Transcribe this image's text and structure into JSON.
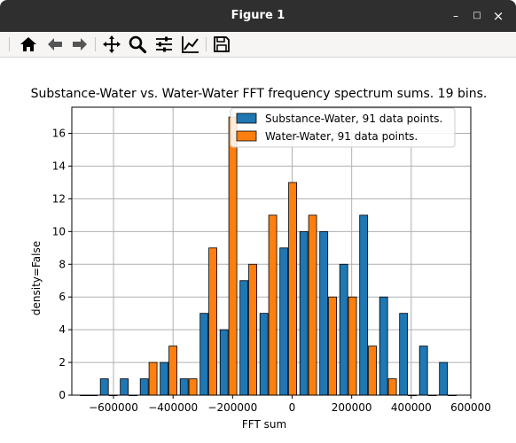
{
  "window": {
    "title": "Figure 1",
    "controls": {
      "minimize": "–",
      "maximize": "□",
      "close": "×"
    }
  },
  "toolbar": {
    "buttons": [
      {
        "name": "home",
        "icon": "home-icon"
      },
      {
        "name": "back",
        "icon": "arrow-left-icon"
      },
      {
        "name": "forward",
        "icon": "arrow-right-icon"
      },
      {
        "name": "pan",
        "icon": "move-icon"
      },
      {
        "name": "zoom",
        "icon": "magnifier-icon"
      },
      {
        "name": "configure-subplots",
        "icon": "sliders-icon"
      },
      {
        "name": "edit-axis",
        "icon": "line-chart-icon"
      },
      {
        "name": "save",
        "icon": "floppy-disk-icon"
      }
    ]
  },
  "colors": {
    "series1": "#1f77b4",
    "series2": "#ff7f0e",
    "grid": "#b0b0b0",
    "titlebar": "#2f2f2f"
  },
  "chart_data": {
    "type": "bar",
    "title": "Substance-Water vs. Water-Water FFT frequency spectrum sums. 19 bins.",
    "xlabel": "FFT sum",
    "ylabel": "density=False",
    "xlim": [
      -740000,
      600000
    ],
    "ylim": [
      0,
      17.6
    ],
    "grid": true,
    "legend_position": "top-right",
    "x_ticks": [
      -600000,
      -400000,
      -200000,
      0,
      200000,
      400000,
      600000
    ],
    "x_tick_labels": [
      "−600000",
      "−400000",
      "−200000",
      "0",
      "200000",
      "400000",
      "600000"
    ],
    "y_ticks": [
      0,
      2,
      4,
      6,
      8,
      10,
      12,
      14,
      16
    ],
    "y_tick_labels": [
      "0",
      "2",
      "4",
      "6",
      "8",
      "10",
      "12",
      "14",
      "16"
    ],
    "bin_width": 67000,
    "bin_centers": [
      -683000,
      -616000,
      -549000,
      -482000,
      -415000,
      -348000,
      -281000,
      -214000,
      -147000,
      -80000,
      -13000,
      54000,
      121000,
      188000,
      255000,
      322000,
      389000,
      456000,
      523000
    ],
    "series": [
      {
        "name": "Substance-Water, 91 data points.",
        "values": [
          0,
          1,
          1,
          1,
          2,
          1,
          5,
          4,
          7,
          5,
          9,
          10,
          10,
          8,
          11,
          6,
          5,
          3,
          2
        ]
      },
      {
        "name": "Water-Water, 91 data points.",
        "values": [
          0,
          0,
          0,
          2,
          3,
          1,
          9,
          17,
          8,
          11,
          13,
          11,
          6,
          6,
          3,
          1,
          0,
          0,
          0
        ]
      }
    ]
  }
}
